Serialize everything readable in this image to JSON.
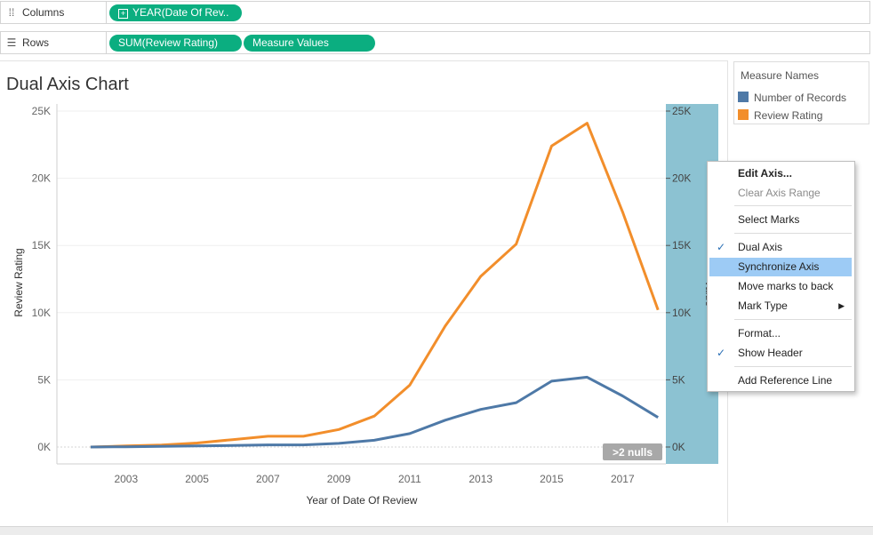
{
  "shelves": {
    "columns": {
      "label": "Columns",
      "icon": "columns-icon",
      "pills": [
        "YEAR(Date Of Rev.."
      ]
    },
    "rows": {
      "label": "Rows",
      "icon": "rows-icon",
      "pills": [
        "SUM(Review Rating)",
        "Measure Values"
      ]
    }
  },
  "sheet": {
    "title": "Dual Axis Chart"
  },
  "legend": {
    "title": "Measure Names",
    "items": [
      {
        "label": "Number of Records",
        "color": "#4e79a7"
      },
      {
        "label": "Review Rating",
        "color": "#f28e2b"
      }
    ]
  },
  "colors": {
    "pill": "#0bae80",
    "menu_highlight": "#9dcbf5",
    "selected_axis": "#8cc2d2"
  },
  "null_badge": ">2 nulls",
  "context_menu": {
    "items": [
      {
        "label": "Edit Axis...",
        "bold": true
      },
      {
        "label": "Clear Axis Range",
        "disabled": true
      },
      {
        "label": "Select Marks"
      },
      {
        "label": "Dual Axis",
        "checked": true
      },
      {
        "label": "Synchronize Axis",
        "highlighted": true
      },
      {
        "label": "Move marks to back"
      },
      {
        "label": "Mark Type",
        "submenu": true
      },
      {
        "label": "Format..."
      },
      {
        "label": "Show Header",
        "checked": true
      },
      {
        "label": "Add Reference Line"
      }
    ]
  },
  "chart_data": {
    "type": "line",
    "title": "Dual Axis Chart",
    "xlabel": "Year of Date Of Review",
    "ylabel": "Review Rating",
    "y2label": "Value",
    "x": [
      2002,
      2003,
      2004,
      2005,
      2006,
      2007,
      2008,
      2009,
      2010,
      2011,
      2012,
      2013,
      2014,
      2015,
      2016,
      2017,
      2018
    ],
    "x_ticks": [
      "2003",
      "2005",
      "2007",
      "2009",
      "2011",
      "2013",
      "2015",
      "2017"
    ],
    "xlim": [
      2001.05,
      2019.7
    ],
    "ylim": [
      0,
      25000
    ],
    "y_ticks": [
      "0K",
      "5K",
      "10K",
      "15K",
      "20K",
      "25K"
    ],
    "series": [
      {
        "name": "Review Rating",
        "color": "#f28e2b",
        "values": [
          0,
          80,
          150,
          300,
          550,
          800,
          800,
          1300,
          2300,
          4600,
          9000,
          12700,
          15100,
          22400,
          24100,
          17500,
          10200
        ]
      },
      {
        "name": "Number of Records",
        "color": "#4e79a7",
        "values": [
          0,
          20,
          50,
          80,
          110,
          160,
          160,
          270,
          500,
          1000,
          2000,
          2800,
          3300,
          4900,
          5200,
          3800,
          2200
        ]
      }
    ]
  }
}
